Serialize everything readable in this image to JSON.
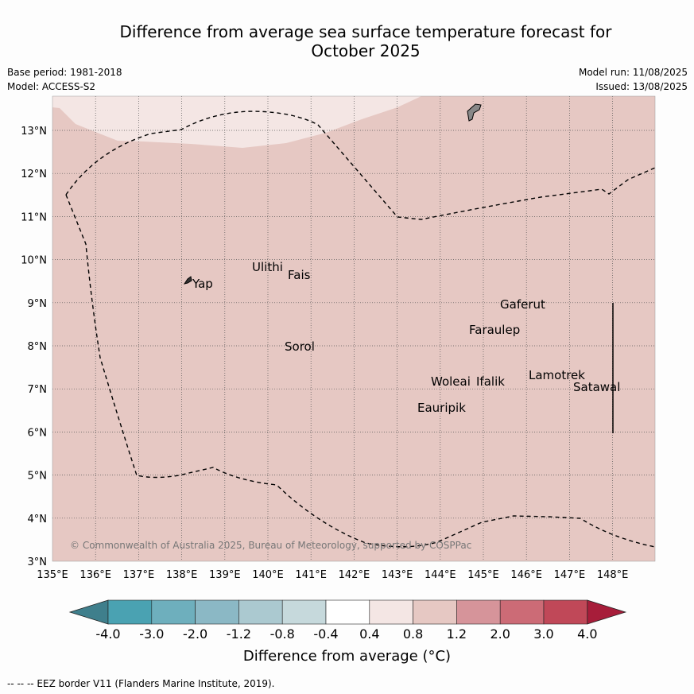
{
  "header": {
    "title_line1": "Difference from average sea surface temperature forecast for",
    "title_line2": "October 2025",
    "base_period": "Base period: 1981-2018",
    "model": "Model: ACCESS-S2",
    "model_run": "Model run: 11/08/2025",
    "issued": "Issued: 13/08/2025"
  },
  "map": {
    "lon_ticks": [
      "135°E",
      "136°E",
      "137°E",
      "138°E",
      "139°E",
      "140°E",
      "141°E",
      "142°E",
      "143°E",
      "144°E",
      "145°E",
      "146°E",
      "147°E",
      "148°E"
    ],
    "lat_ticks": [
      "3°N",
      "4°N",
      "5°N",
      "6°N",
      "7°N",
      "8°N",
      "9°N",
      "10°N",
      "11°N",
      "12°N",
      "13°N"
    ],
    "places": [
      "Yap",
      "Ulithi",
      "Fais",
      "Sorol",
      "Gaferut",
      "Faraulep",
      "Woleai",
      "Ifalik",
      "Eauripik",
      "Lamotrek",
      "Satawal"
    ],
    "copyright": "© Commonwealth of Australia 2025, Bureau of Meteorology, supported by COSPPac",
    "colors": {
      "fill_0.8_1.2": "#e6c8c3",
      "fill_0.4_0.8": "#f4e6e4",
      "land": "#888888",
      "grid": "#555555"
    }
  },
  "colorbar": {
    "labels": [
      "-4.0",
      "-3.0",
      "-2.0",
      "-1.2",
      "-0.8",
      "-0.4",
      "0.4",
      "0.8",
      "1.2",
      "2.0",
      "3.0",
      "4.0"
    ],
    "colors": [
      "#3f7f8c",
      "#4aa2b2",
      "#6eafbd",
      "#8bb8c5",
      "#abc9d0",
      "#c6d9dc",
      "#ffffff",
      "#f4e6e4",
      "#e6c8c3",
      "#d6949a",
      "#cc6b76",
      "#c04858",
      "#a71d3a"
    ],
    "title": "Difference from average (°C)"
  },
  "footer": "-- -- -- EEZ border V11 (Flanders Marine Institute, 2019)."
}
